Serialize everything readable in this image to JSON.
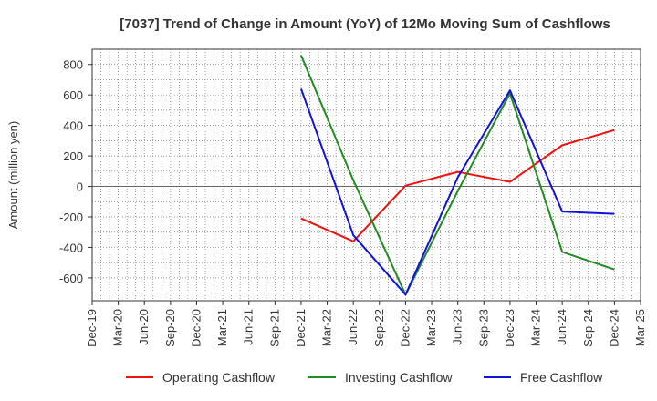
{
  "chart_data": {
    "type": "line",
    "title": "[7037]  Trend of Change in Amount (YoY) of 12Mo Moving Sum of Cashflows",
    "xlabel": "",
    "ylabel": "Amount (million yen)",
    "ylim": [
      -750,
      900
    ],
    "yticks": [
      800,
      600,
      400,
      200,
      0,
      -200,
      -400,
      -600
    ],
    "ytick_labels": [
      "800",
      "600",
      "400",
      "200",
      "0",
      "-200",
      "-400",
      "-600"
    ],
    "categories": [
      "Dec-19",
      "Mar-20",
      "Jun-20",
      "Sep-20",
      "Dec-20",
      "Mar-21",
      "Jun-21",
      "Sep-21",
      "Dec-21",
      "Mar-22",
      "Jun-22",
      "Sep-22",
      "Dec-22",
      "Mar-23",
      "Jun-23",
      "Sep-23",
      "Dec-23",
      "Mar-24",
      "Jun-24",
      "Sep-24",
      "Dec-24",
      "Mar-25"
    ],
    "grid": true,
    "legend_position": "bottom",
    "series": [
      {
        "name": "Operating Cashflow",
        "color": "#ee1111",
        "points": [
          [
            "Dec-21",
            -210
          ],
          [
            "Jun-22",
            -360
          ],
          [
            "Dec-22",
            5
          ],
          [
            "Jun-23",
            95
          ],
          [
            "Dec-23",
            30
          ],
          [
            "Jun-24",
            270
          ],
          [
            "Dec-24",
            370
          ]
        ]
      },
      {
        "name": "Investing Cashflow",
        "color": "#228b22",
        "points": [
          [
            "Dec-21",
            860
          ],
          [
            "Jun-22",
            40
          ],
          [
            "Dec-22",
            -710
          ],
          [
            "Jun-23",
            -30
          ],
          [
            "Dec-23",
            610
          ],
          [
            "Jun-24",
            -430
          ],
          [
            "Dec-24",
            -545
          ]
        ]
      },
      {
        "name": "Free Cashflow",
        "color": "#1111dd",
        "points": [
          [
            "Dec-21",
            640
          ],
          [
            "Jun-22",
            -320
          ],
          [
            "Dec-22",
            -710
          ],
          [
            "Jun-23",
            60
          ],
          [
            "Dec-23",
            630
          ],
          [
            "Jun-24",
            -165
          ],
          [
            "Dec-24",
            -180
          ]
        ]
      }
    ]
  }
}
